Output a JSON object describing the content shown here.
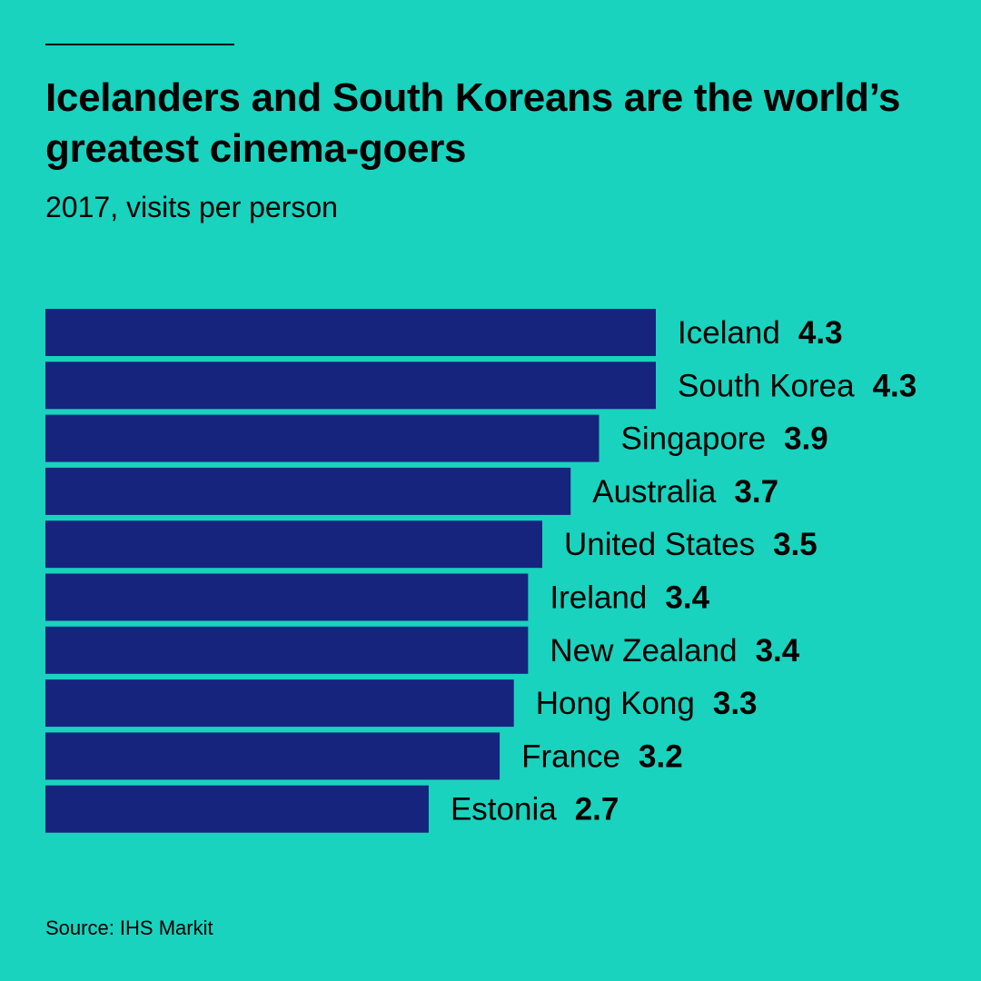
{
  "chart_data": {
    "type": "bar",
    "orientation": "horizontal",
    "title": "Icelanders and South Koreans are the world’s greatest cinema-goers",
    "subtitle": "2017, visits per person",
    "categories": [
      "Iceland",
      "South Korea",
      "Singapore",
      "Australia",
      "United States",
      "Ireland",
      "New Zealand",
      "Hong Kong",
      "France",
      "Estonia"
    ],
    "values": [
      4.3,
      4.3,
      3.9,
      3.7,
      3.5,
      3.4,
      3.4,
      3.3,
      3.2,
      2.7
    ],
    "value_labels": [
      "4.3",
      "4.3",
      "3.9",
      "3.7",
      "3.5",
      "3.4",
      "3.4",
      "3.3",
      "3.2",
      "2.7"
    ],
    "xlim": [
      0,
      4.3
    ],
    "xlabel": "",
    "ylabel": "",
    "grid": false,
    "bar_color": "#16247e",
    "source": "Source:  IHS Markit"
  },
  "colors": {
    "background": "#19d3be",
    "bar": "#16247e",
    "text": "#000000"
  }
}
